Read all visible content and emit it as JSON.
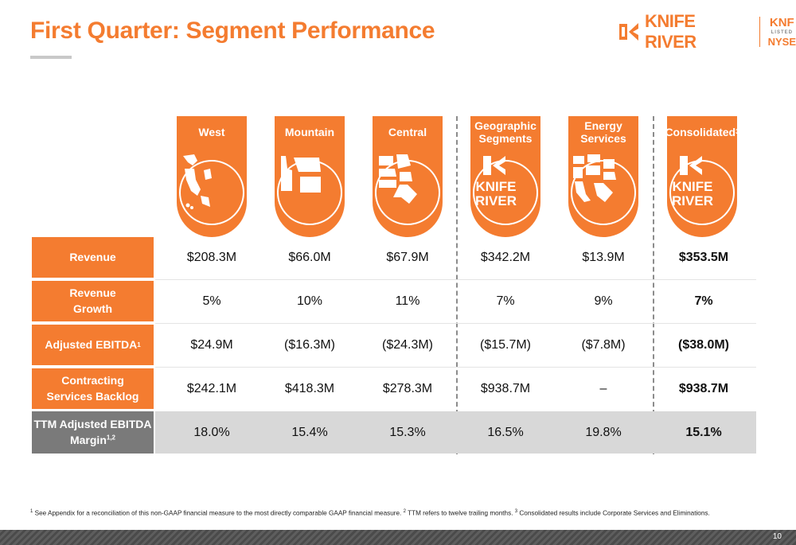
{
  "title": "First Quarter: Segment Performance",
  "logo": {
    "word": "KNIFE RIVER",
    "ticker_top": "KNF",
    "ticker_mid": "LISTED",
    "ticker_bottom": "NYSE"
  },
  "colors": {
    "accent": "#F47C30",
    "grey_row": "#d8d8d8",
    "grey_label": "#7a7a7a"
  },
  "columns": [
    {
      "label": "West",
      "art": "west-map-icon"
    },
    {
      "label": "Mountain",
      "art": "mountain-map-icon"
    },
    {
      "label": "Central",
      "art": "central-map-icon"
    },
    {
      "label": "Geographic Segments",
      "art": "knife-river-logo"
    },
    {
      "label": "Energy Services",
      "art": "energy-services-map-icon"
    },
    {
      "label": "Consolidated",
      "sup": "3",
      "art": "knife-river-logo"
    }
  ],
  "logo_badge_text": {
    "line1": "KNIFE",
    "line2": "RIVER"
  },
  "rows": [
    {
      "label": "Revenue",
      "values": [
        "$208.3M",
        "$66.0M",
        "$67.9M",
        "$342.2M",
        "$13.9M",
        "$353.5M"
      ]
    },
    {
      "label_line1": "Revenue",
      "label_line2": "Growth",
      "values": [
        "5%",
        "10%",
        "11%",
        "7%",
        "9%",
        "7%"
      ]
    },
    {
      "label": "Adjusted EBITDA",
      "sup": "1",
      "values": [
        "$24.9M",
        "($16.3M)",
        "($24.3M)",
        "($15.7M)",
        "($7.8M)",
        "($38.0M)"
      ]
    },
    {
      "label_line1": "Contracting",
      "label_line2": "Services Backlog",
      "values": [
        "$242.1M",
        "$418.3M",
        "$278.3M",
        "$938.7M",
        "–",
        "$938.7M"
      ]
    },
    {
      "label_line1": "TTM Adjusted EBITDA",
      "label_line2": "Margin",
      "sup": "1,2",
      "values": [
        "18.0%",
        "15.4%",
        "15.3%",
        "16.5%",
        "19.8%",
        "15.1%"
      ]
    }
  ],
  "footnote": {
    "n1": "1",
    "t1": " See Appendix for a reconciliation of this non-GAAP financial measure to the most directly comparable GAAP financial measure. ",
    "n2": "2",
    "t2": " TTM refers to twelve trailing months. ",
    "n3": "3",
    "t3": " Consolidated results include Corporate Services and Eliminations."
  },
  "page_number": "10"
}
